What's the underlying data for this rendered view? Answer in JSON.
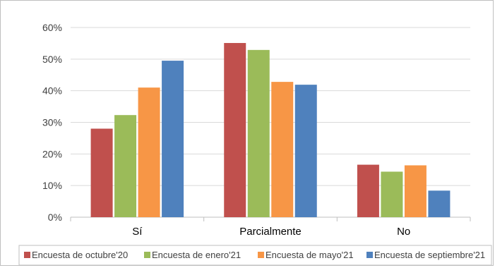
{
  "chart_data": {
    "type": "bar",
    "categories": [
      "Sí",
      "Parcialmente",
      "No"
    ],
    "series": [
      {
        "name": "Encuesta de octubre'20",
        "color": "#c0504d",
        "values": [
          28.0,
          55.1,
          16.6
        ]
      },
      {
        "name": "Encuesta de enero'21",
        "color": "#9bbb59",
        "values": [
          32.3,
          52.9,
          14.4
        ]
      },
      {
        "name": "Encuesta de mayo'21",
        "color": "#f79646",
        "values": [
          41.0,
          42.8,
          16.4
        ]
      },
      {
        "name": "Encuesta de septiembre'21",
        "color": "#4f81bd",
        "values": [
          49.5,
          41.9,
          8.4
        ]
      }
    ],
    "yticks": [
      "0%",
      "10%",
      "20%",
      "30%",
      "40%",
      "50%",
      "60%"
    ],
    "ylim": [
      0,
      60
    ],
    "grid": true,
    "legend_position": "bottom"
  }
}
